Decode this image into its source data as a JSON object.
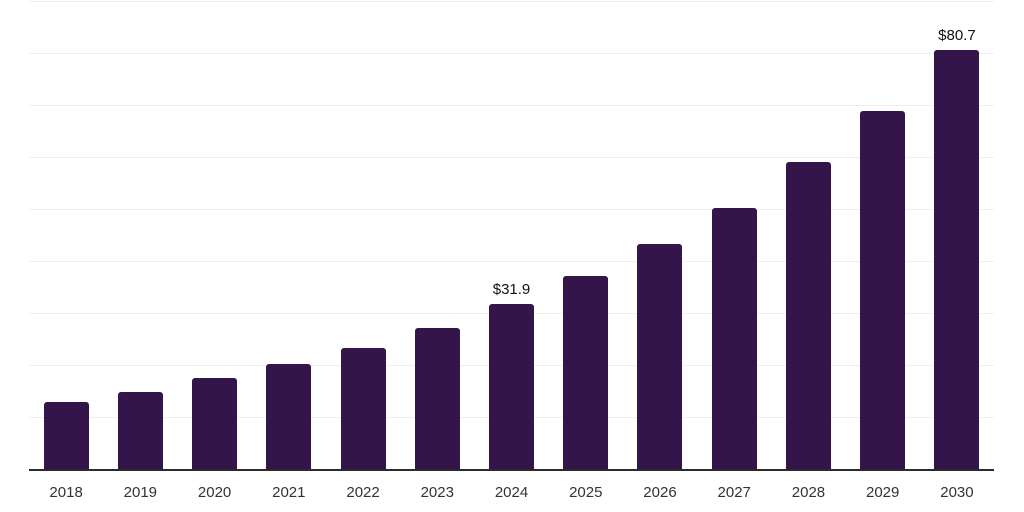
{
  "chart_data": {
    "type": "bar",
    "title": "",
    "xlabel": "",
    "ylabel": "",
    "categories": [
      "2018",
      "2019",
      "2020",
      "2021",
      "2022",
      "2023",
      "2024",
      "2025",
      "2026",
      "2027",
      "2028",
      "2029",
      "2030"
    ],
    "values": [
      13.1,
      15.0,
      17.6,
      20.4,
      23.4,
      27.3,
      31.9,
      37.3,
      43.4,
      50.4,
      59.1,
      69.0,
      80.7
    ],
    "value_labels": [
      "",
      "",
      "",
      "",
      "",
      "",
      "$31.9",
      "",
      "",
      "",
      "",
      "",
      "$80.7"
    ],
    "value_prefix": "$",
    "ylim": [
      0,
      90.3
    ],
    "grid": "horizontal",
    "grid_step": 10,
    "legend_position": "none",
    "colors": {
      "bar": "#33154a",
      "gridline": "#efefef",
      "axis_line": "#2b2b2b",
      "value_label": "#111111",
      "tick_label": "#333333",
      "background": "#ffffff"
    }
  }
}
